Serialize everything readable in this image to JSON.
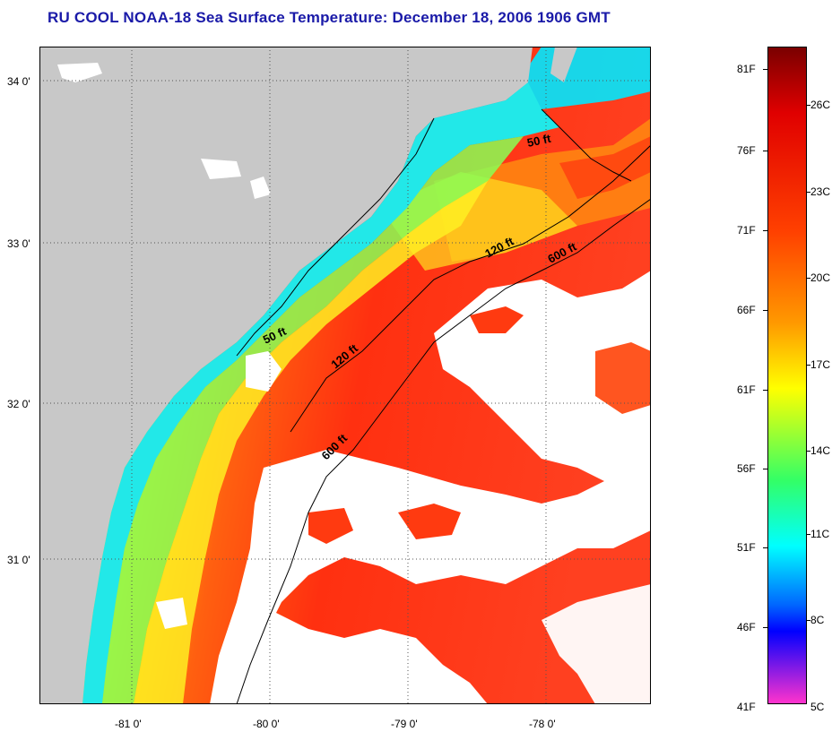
{
  "title": "RU COOL  NOAA-18  Sea Surface Temperature:  December 18, 2006 1906 GMT",
  "axes": {
    "lat_labels": [
      "34 0'",
      "33 0'",
      "32 0'",
      "31 0'"
    ],
    "lon_labels": [
      "-81 0'",
      "-80 0'",
      "-79 0'",
      "-78 0'"
    ]
  },
  "contours": {
    "c50_a": "50 ft",
    "c50_b": "50 ft",
    "c120_a": "120 ft",
    "c120_b": "120 ft",
    "c600_a": "600 ft",
    "c600_b": "600 ft"
  },
  "colorbar": {
    "fahrenheit": [
      "81F",
      "76F",
      "71F",
      "66F",
      "61F",
      "56F",
      "51F",
      "46F",
      "41F"
    ],
    "celsius": [
      "26C",
      "23C",
      "20C",
      "17C",
      "14C",
      "11C",
      "8C",
      "5C"
    ],
    "colors": [
      "#7a0000",
      "#e00000",
      "#ff4000",
      "#ff9900",
      "#ffff00",
      "#33ff66",
      "#00ffff",
      "#0066ff",
      "#0000ff",
      "#ff33cc"
    ]
  },
  "colors": {
    "land": "#c8c8c8",
    "cloud": "#ffffff",
    "title": "#1a1aa8"
  }
}
